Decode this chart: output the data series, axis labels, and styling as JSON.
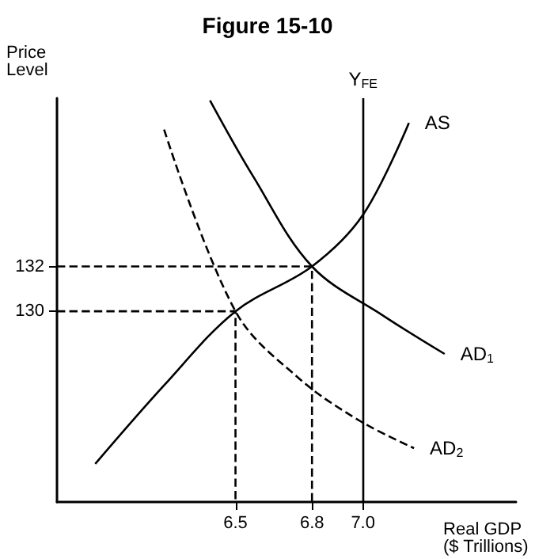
{
  "chart_data": {
    "type": "line",
    "title": "Figure 15-10",
    "xlabel": "Real GDP\n($ Trillions)",
    "ylabel": "Price\nLevel",
    "xlim": [
      5.8,
      7.6
    ],
    "ylim": [
      121.5,
      139.5
    ],
    "xticks": [
      6.5,
      6.8,
      {
        "value": 7,
        "label": "7.0"
      }
    ],
    "yticks": [
      130,
      132
    ],
    "series": [
      {
        "name": "AS",
        "color": "#000000",
        "x": [
          5.95,
          6.22,
          6.5,
          6.8,
          7.0,
          7.18
        ],
        "values": [
          123.2,
          126.7,
          130,
          132,
          134.3,
          138.4
        ]
      },
      {
        "name": "AD$_{1}$",
        "color": "#000000",
        "x": [
          6.4,
          6.57,
          6.8,
          7.08,
          7.32
        ],
        "values": [
          139.4,
          136,
          132,
          129.8,
          128.1
        ]
      },
      {
        "name": "AD$_{2}$",
        "color": "#000000",
        "line_style": "dashed",
        "x": [
          6.22,
          6.5,
          6.75,
          6.99,
          7.2
        ],
        "values": [
          138.1,
          130,
          127,
          125.1,
          123.9
        ]
      },
      {
        "color": "#000000",
        "line_style": "dashed",
        "x": [
          5.8,
          6.8,
          6.8
        ],
        "values": [
          132,
          132,
          121.5
        ]
      },
      {
        "color": "#000000",
        "line_style": "dashed",
        "x": [
          5.8,
          6.5,
          6.5
        ],
        "values": [
          130,
          130,
          121.5
        ]
      }
    ],
    "ref_lines": [
      {
        "axis": "x",
        "value": 7,
        "label": "Y$_{FE}$",
        "color": "#000000"
      }
    ],
    "marker": "none",
    "grid": false,
    "legend": false
  }
}
